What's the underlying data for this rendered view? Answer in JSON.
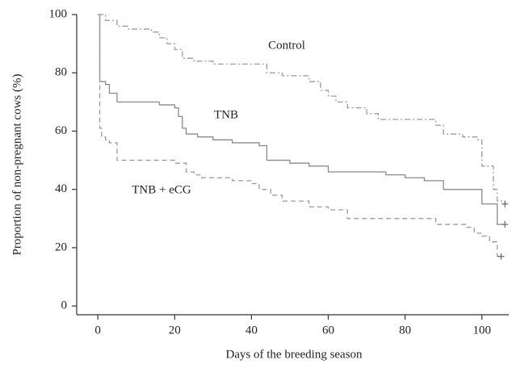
{
  "chart_data": {
    "type": "step",
    "x_label": "Days of the breeding season",
    "y_label": "Proportion of non-pregnant cows (%)",
    "xlim": [
      -5.5,
      107
    ],
    "xticks": [
      0,
      20,
      40,
      60,
      80,
      100
    ],
    "ylim": [
      -3,
      100
    ],
    "yticks": [
      0,
      20,
      40,
      60,
      80,
      100
    ],
    "series": [
      {
        "name": "Control",
        "color": "#9a9a9a",
        "dash": "7 3 2 3",
        "x": [
          0,
          2,
          5,
          8,
          14,
          16,
          18,
          20,
          22,
          25,
          30,
          44,
          48,
          55,
          58,
          60,
          62,
          65,
          70,
          73,
          88,
          90,
          95,
          99,
          100,
          103,
          104,
          106
        ],
        "values": [
          100,
          98,
          96,
          95,
          94,
          92,
          90,
          88,
          85,
          84,
          83,
          80,
          79,
          77,
          74,
          72,
          70,
          68,
          66,
          64,
          62,
          59,
          58,
          57,
          48,
          40,
          36,
          35
        ]
      },
      {
        "name": "TNB",
        "color": "#8a8a8a",
        "dash": "",
        "x": [
          0,
          0.5,
          2,
          3,
          5,
          16,
          20,
          21,
          22,
          23,
          26,
          30,
          35,
          42,
          44,
          50,
          55,
          60,
          75,
          80,
          85,
          90,
          100,
          104,
          106
        ],
        "values": [
          100,
          77,
          76,
          73,
          70,
          69,
          68,
          65,
          61,
          59,
          58,
          57,
          56,
          55,
          50,
          49,
          48,
          46,
          45,
          44,
          43,
          40,
          35,
          28,
          28
        ]
      },
      {
        "name": "TNB + eCG",
        "color": "#9a9a9a",
        "dash": "6 4",
        "x": [
          0,
          0.5,
          1,
          2,
          3,
          5,
          20,
          23,
          25,
          27,
          35,
          40,
          42,
          45,
          48,
          55,
          60,
          65,
          80,
          88,
          96,
          98,
          100,
          102,
          104,
          105
        ],
        "values": [
          100,
          61,
          58,
          57,
          56,
          50,
          49,
          46,
          45,
          44,
          43,
          42,
          40,
          38,
          36,
          34,
          33,
          30,
          30,
          28,
          27,
          25,
          24,
          22,
          17,
          17
        ]
      }
    ]
  }
}
